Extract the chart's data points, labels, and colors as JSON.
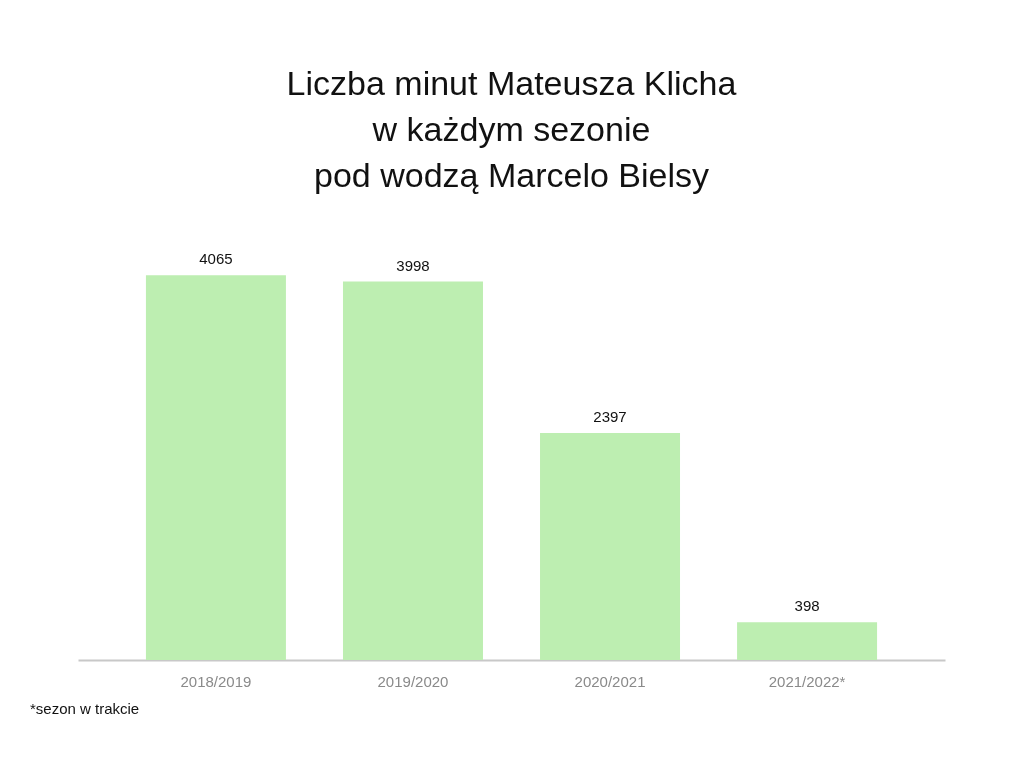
{
  "chart_data": {
    "type": "bar",
    "title": "Liczba minut Mateusza Klicha\nw każdym sezonie\npod wodzą Marcelo Bielsy",
    "categories": [
      "2018/2019",
      "2019/2020",
      "2020/2021",
      "2021/2022*"
    ],
    "values": [
      4065,
      3998,
      2397,
      398
    ],
    "color": "#bdeeb1",
    "data_labels": true,
    "grid": false,
    "annotations": [
      "*sezon w trakcie"
    ]
  }
}
